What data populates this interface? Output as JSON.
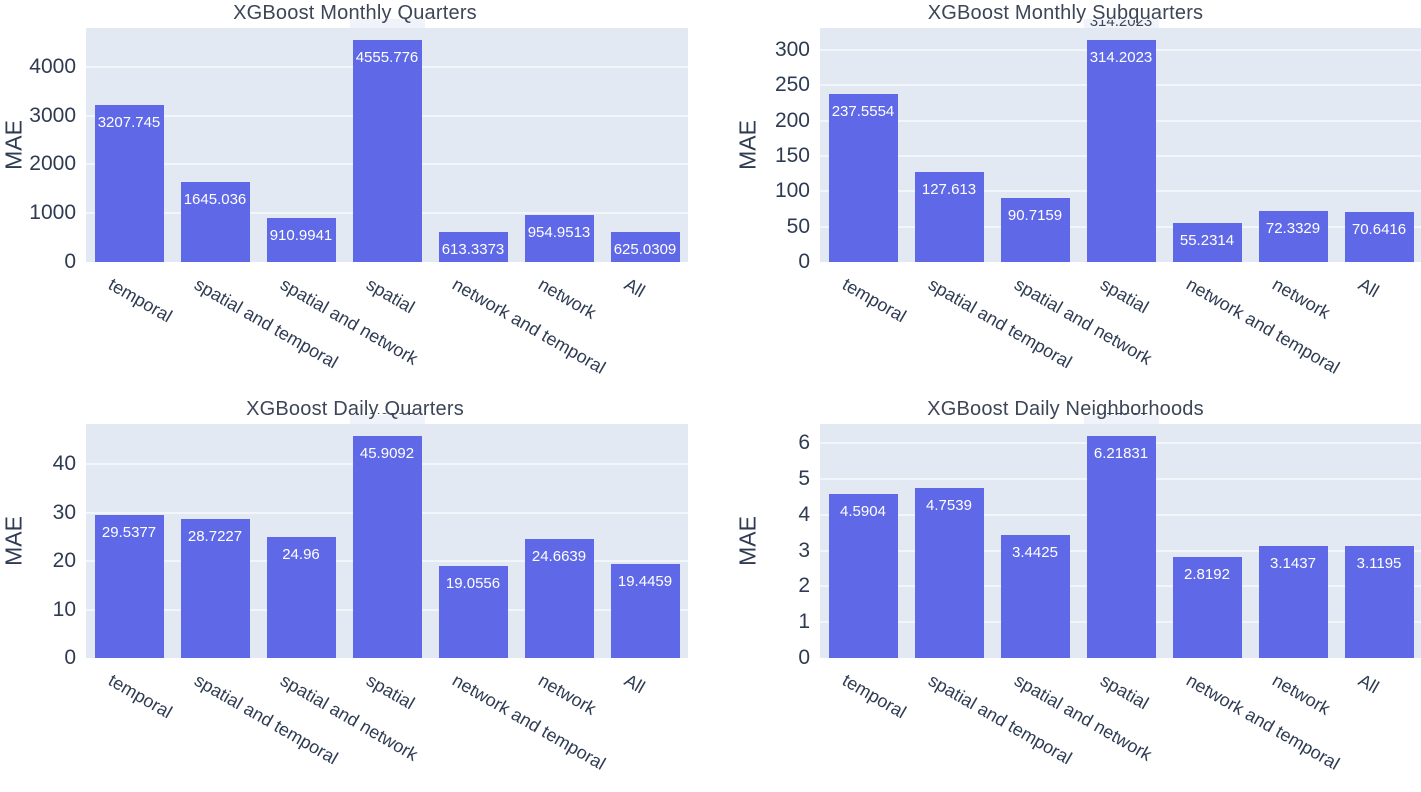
{
  "page": {
    "background": "#ffffff"
  },
  "styles": {
    "bar_color": "#5f69e7",
    "plot_bg": "#e3e9f3",
    "grid_color": "#f2f5fa",
    "tick_color": "#2e3b52",
    "title_color": "#3c4657",
    "bar_label_color": "#ffffff",
    "ghost_box_color": "#f0f3f9",
    "clipped_label_color": "#3c4657"
  },
  "chart_data": [
    {
      "type": "bar",
      "title": "XGBoost Monthly Quarters",
      "ylabel": "MAE",
      "xlabel": "",
      "categories": [
        "temporal",
        "spatial and temporal",
        "spatial and network",
        "spatial",
        "network and temporal",
        "network",
        "All"
      ],
      "values": [
        3207.745,
        1645.036,
        910.9941,
        4555.776,
        613.3373,
        954.9513,
        625.0309
      ],
      "labels": [
        "3207.745",
        "1645.036",
        "910.9941",
        "4555.776",
        "613.3373",
        "954.9513",
        "625.0309"
      ],
      "yticks": [
        0,
        1000,
        2000,
        3000,
        4000
      ],
      "ytick_labels": [
        "0",
        "1000",
        "2000",
        "3000",
        "4000"
      ],
      "ylim": [
        0,
        4795.5
      ],
      "grid": true,
      "legend": "none",
      "bar_label_position": "inside-top",
      "clipped_outside_label": ""
    },
    {
      "type": "bar",
      "title": "XGBoost Monthly Subquarters",
      "ylabel": "MAE",
      "xlabel": "",
      "categories": [
        "temporal",
        "spatial and temporal",
        "spatial and network",
        "spatial",
        "network and temporal",
        "network",
        "All"
      ],
      "values": [
        237.5554,
        127.613,
        90.7159,
        314.2023,
        55.2314,
        72.3329,
        70.6416
      ],
      "labels": [
        "237.5554",
        "127.613",
        "90.7159",
        "314.2023",
        "55.2314",
        "72.3329",
        "70.6416"
      ],
      "yticks": [
        0,
        50,
        100,
        150,
        200,
        250,
        300
      ],
      "ytick_labels": [
        "0",
        "50",
        "100",
        "150",
        "200",
        "250",
        "300"
      ],
      "ylim": [
        0,
        330.76
      ],
      "grid": true,
      "legend": "none",
      "bar_label_position": "inside-top",
      "clipped_outside_label": "314.2023"
    },
    {
      "type": "bar",
      "title": "XGBoost Daily Quarters",
      "ylabel": "MAE",
      "xlabel": "",
      "categories": [
        "temporal",
        "spatial and temporal",
        "spatial and network",
        "spatial",
        "network and temporal",
        "network",
        "All"
      ],
      "values": [
        29.5377,
        28.7227,
        24.96,
        45.9092,
        19.0556,
        24.6639,
        19.4459
      ],
      "labels": [
        "29.5377",
        "28.7227",
        "24.96",
        "45.9092",
        "19.0556",
        "24.6639",
        "19.4459"
      ],
      "yticks": [
        0,
        10,
        20,
        30,
        40
      ],
      "ytick_labels": [
        "0",
        "10",
        "20",
        "30",
        "40"
      ],
      "ylim": [
        0,
        48.33
      ],
      "grid": true,
      "legend": "none",
      "bar_label_position": "inside-top",
      "clipped_outside_label": "45.9092"
    },
    {
      "type": "bar",
      "title": "XGBoost Daily Neighborhoods",
      "ylabel": "MAE",
      "xlabel": "",
      "categories": [
        "temporal",
        "spatial and temporal",
        "spatial and network",
        "spatial",
        "network and temporal",
        "network",
        "All"
      ],
      "values": [
        4.5904,
        4.7539,
        3.4425,
        6.21831,
        2.8192,
        3.1437,
        3.1195
      ],
      "labels": [
        "4.5904",
        "4.7539",
        "3.4425",
        "6.21831",
        "2.8192",
        "3.1437",
        "3.1195"
      ],
      "yticks": [
        0,
        1,
        2,
        3,
        4,
        5,
        6
      ],
      "ytick_labels": [
        "0",
        "1",
        "2",
        "3",
        "4",
        "5",
        "6"
      ],
      "ylim": [
        0,
        6.545
      ],
      "grid": true,
      "legend": "none",
      "bar_label_position": "inside-top",
      "clipped_outside_label": "6.21831"
    }
  ]
}
